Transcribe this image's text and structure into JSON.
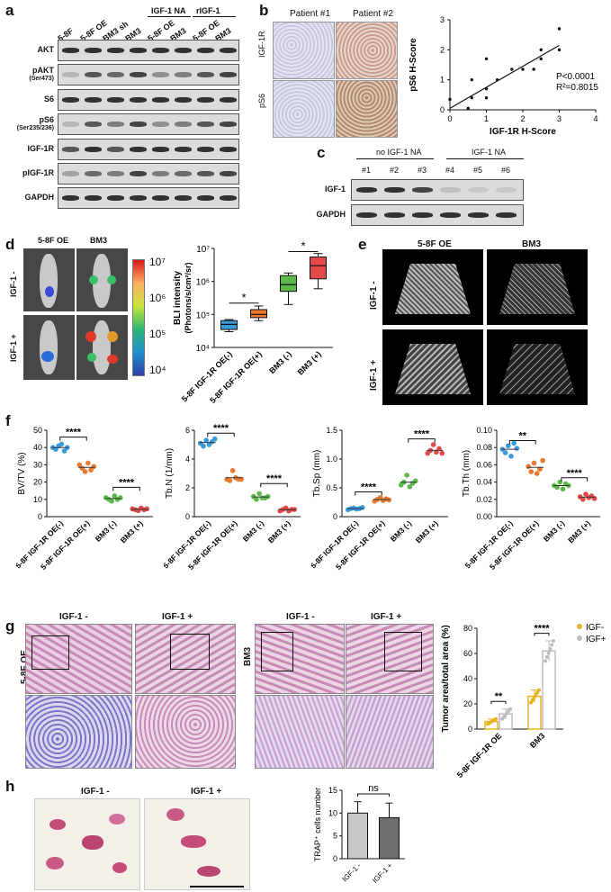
{
  "panels": {
    "a": {
      "label": "a",
      "lanes": [
        "5-8F",
        "5-8F OE",
        "BM3 sh",
        "BM3",
        "5-8F OE",
        "BM3",
        "5-8F OE",
        "BM3"
      ],
      "groups": [
        "IGF-1 NA",
        "rIGF-1"
      ],
      "rows": [
        "AKT",
        "pAKT",
        "(Ser473)",
        "S6",
        "pS6",
        "(Ser235/236)",
        "IGF-1R",
        "pIGF-1R",
        "GAPDH"
      ]
    },
    "b": {
      "label": "b",
      "patients": [
        "Patient #1",
        "Patient #2"
      ],
      "rows": [
        "IGF-1R",
        "pS6"
      ],
      "xlabel": "IGF-1R H-Score",
      "ylabel": "pS6 H-Score",
      "stat_p": "P<0.0001",
      "stat_r": "R²=0.8015"
    },
    "c": {
      "label": "c",
      "groups": [
        "no IGF-1 NA",
        "IGF-1 NA"
      ],
      "lanes": [
        "#1",
        "#2",
        "#3",
        "#4",
        "#5",
        "#6"
      ],
      "rows": [
        "IGF-1",
        "GAPDH"
      ]
    },
    "d": {
      "label": "d",
      "cols": [
        "5-8F OE",
        "BM3"
      ],
      "rows": [
        "IGF-1 -",
        "IGF-1 +"
      ],
      "scale": [
        "10⁷",
        "10⁶",
        "10⁵",
        "10⁴"
      ],
      "ylabel_1": "BLI intensity",
      "ylabel_2": "(Photons/s/cm²/sr)",
      "star1": "*",
      "star2": "*"
    },
    "e": {
      "label": "e",
      "cols": [
        "5-8F OE",
        "BM3"
      ],
      "rows": [
        "IGF-1 -",
        "IGF-1 +"
      ]
    },
    "f": {
      "label": "f",
      "sig": [
        "****",
        "****",
        "****",
        "****",
        "****",
        "****",
        "**",
        "****"
      ]
    },
    "g": {
      "label": "g",
      "cols": [
        "IGF-1 -",
        "IGF-1 +"
      ],
      "row_left": "5-8F OE",
      "row_right": "BM3",
      "legend": [
        "IGF-",
        "IGF+"
      ],
      "sig": [
        "**",
        "****"
      ]
    },
    "h": {
      "label": "h",
      "cols": [
        "IGF-1 -",
        "IGF-1 +"
      ],
      "sig": "ns",
      "ylabel": "TRAP⁺ cells number",
      "categories": [
        "IGF-1 -",
        "IGF-1 +"
      ]
    }
  },
  "chart_data": [
    {
      "type": "scatter",
      "xlabel": "IGF-1R H-Score",
      "ylabel": "pS6 H-Score",
      "xlim": [
        0,
        4
      ],
      "ylim": [
        0,
        3
      ],
      "xticks": [
        0,
        1,
        2,
        3,
        4
      ],
      "yticks": [
        0,
        1,
        2,
        3
      ],
      "points": [
        [
          0,
          0.35
        ],
        [
          0.5,
          0.05
        ],
        [
          0.6,
          0.4
        ],
        [
          0.6,
          1.0
        ],
        [
          1.0,
          0.4
        ],
        [
          1.0,
          0.7
        ],
        [
          1.0,
          1.7
        ],
        [
          1.3,
          1.0
        ],
        [
          1.7,
          1.35
        ],
        [
          2.0,
          1.35
        ],
        [
          2.3,
          1.35
        ],
        [
          2.5,
          1.7
        ],
        [
          2.5,
          2.0
        ],
        [
          3.0,
          2.0
        ],
        [
          3.0,
          2.7
        ]
      ],
      "fit": [
        [
          0,
          0.05
        ],
        [
          3,
          2.15
        ]
      ]
    },
    {
      "type": "box",
      "ylabel": "BLI intensity (Photons/s/cm²/sr)",
      "yscale": "log",
      "ylim": [
        10000,
        10000000
      ],
      "yticks": [
        "10⁴",
        "10⁵",
        "10⁶",
        "10⁷"
      ],
      "categories": [
        "5-8F IGF-1R OE(-)",
        "5-8F IGF-1R OE(+)",
        "BM3 (-)",
        "BM3 (+)"
      ],
      "colors": [
        "#3b9ad9",
        "#e8792f",
        "#5db84a",
        "#e24a4a"
      ],
      "boxes": [
        {
          "min": 30000,
          "q1": 35000,
          "median": 50000,
          "q3": 65000,
          "max": 70000
        },
        {
          "min": 65000,
          "q1": 80000,
          "median": 100000,
          "q3": 140000,
          "max": 180000
        },
        {
          "min": 200000,
          "q1": 500000,
          "median": 800000,
          "q3": 1500000,
          "max": 1800000
        },
        {
          "min": 600000,
          "q1": 1200000,
          "median": 3000000,
          "q3": 5500000,
          "max": 7000000
        }
      ]
    },
    {
      "type": "scatter",
      "ylabel": "BV/TV (%)",
      "ylim": [
        0,
        50
      ],
      "yticks": [
        0,
        10,
        20,
        30,
        40,
        50
      ],
      "categories": [
        "5-8F IGF-1R OE(-)",
        "5-8F IGF-1R OE(+)",
        "BM3 (-)",
        "BM3 (+)"
      ],
      "colors": [
        "#3b9ad9",
        "#e8792f",
        "#5db84a",
        "#e24a4a"
      ],
      "series": [
        [
          40,
          39,
          41,
          42,
          38,
          40
        ],
        [
          30,
          28,
          26,
          31,
          27,
          29
        ],
        [
          11,
          10,
          9,
          12,
          10,
          11
        ],
        [
          4.5,
          4,
          3.5,
          5,
          4,
          4.5
        ]
      ]
    },
    {
      "type": "scatter",
      "ylabel": "Tb.N (1/mm)",
      "ylim": [
        0,
        6
      ],
      "yticks": [
        0,
        2,
        4,
        6
      ],
      "categories": [
        "5-8F IGF-1R OE(-)",
        "5-8F IGF-1R OE(+)",
        "BM3 (-)",
        "BM3 (+)"
      ],
      "colors": [
        "#3b9ad9",
        "#e8792f",
        "#5db84a",
        "#e24a4a"
      ],
      "series": [
        [
          5.1,
          4.9,
          5.3,
          5.0,
          5.2,
          5.4
        ],
        [
          2.6,
          2.5,
          3.2,
          2.7,
          2.6,
          2.6
        ],
        [
          1.4,
          1.2,
          1.6,
          1.3,
          1.3,
          1.4
        ],
        [
          0.4,
          0.5,
          0.6,
          0.4,
          0.5,
          0.5
        ]
      ]
    },
    {
      "type": "scatter",
      "ylabel": "Tb.Sp (mm)",
      "ylim": [
        0,
        1.5
      ],
      "yticks": [
        0,
        0.5,
        1.0,
        1.5
      ],
      "categories": [
        "5-8F IGF-1R OE(-)",
        "5-8F IGF-1R OE(+)",
        "BM3 (-)",
        "BM3 (+)"
      ],
      "colors": [
        "#3b9ad9",
        "#e8792f",
        "#5db84a",
        "#e24a4a"
      ],
      "series": [
        [
          0.12,
          0.14,
          0.15,
          0.13,
          0.14,
          0.16
        ],
        [
          0.27,
          0.3,
          0.33,
          0.28,
          0.31,
          0.29
        ],
        [
          0.55,
          0.6,
          0.72,
          0.52,
          0.58,
          0.62
        ],
        [
          1.1,
          1.15,
          1.25,
          1.12,
          1.18,
          1.1
        ]
      ]
    },
    {
      "type": "scatter",
      "ylabel": "Tb.Th (mm)",
      "ylim": [
        0,
        0.1
      ],
      "yticks": [
        0.0,
        0.02,
        0.04,
        0.06,
        0.08,
        0.1
      ],
      "categories": [
        "5-8F IGF-1R OE(-)",
        "5-8F IGF-1R OE(+)",
        "BM3 (-)",
        "BM3 (+)"
      ],
      "colors": [
        "#3b9ad9",
        "#e8792f",
        "#5db84a",
        "#e24a4a"
      ],
      "series": [
        [
          0.078,
          0.074,
          0.082,
          0.07,
          0.085,
          0.079
        ],
        [
          0.058,
          0.052,
          0.062,
          0.05,
          0.055,
          0.065
        ],
        [
          0.036,
          0.034,
          0.04,
          0.032,
          0.038,
          0.036
        ],
        [
          0.023,
          0.02,
          0.026,
          0.022,
          0.024,
          0.021
        ]
      ]
    },
    {
      "type": "bar",
      "ylabel": "Tumor area/total area (%)",
      "ylim": [
        0,
        80
      ],
      "yticks": [
        0,
        20,
        40,
        60,
        80
      ],
      "categories": [
        "5-8F IGF-1R OE",
        "BM3"
      ],
      "series": [
        {
          "name": "IGF-",
          "values": [
            6,
            26
          ],
          "err": [
            2,
            5
          ],
          "color": "#e6b422"
        },
        {
          "name": "IGF+",
          "values": [
            12,
            62
          ],
          "err": [
            4,
            8
          ],
          "color": "#bdbdbd"
        }
      ]
    },
    {
      "type": "bar",
      "ylabel": "TRAP⁺ cells number",
      "ylim": [
        0,
        15
      ],
      "yticks": [
        0,
        5,
        10,
        15
      ],
      "categories": [
        "IGF-1 -",
        "IGF-1 +"
      ],
      "values": [
        10,
        9
      ],
      "err": [
        2.5,
        3.2
      ],
      "colors": [
        "#c8c8c8",
        "#6e6e6e"
      ]
    }
  ]
}
